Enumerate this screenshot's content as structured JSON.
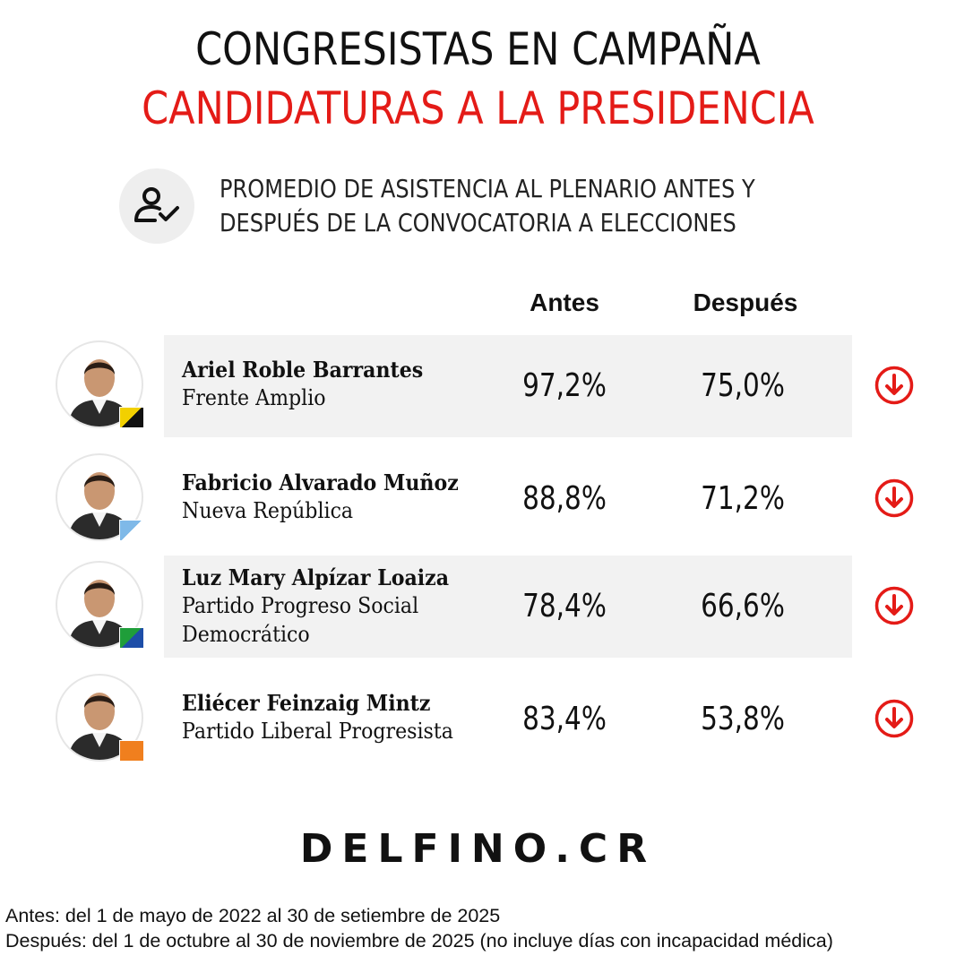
{
  "title": "CONGRESISTAS EN CAMPAÑA",
  "subtitle_red": "CANDIDATURAS A LA PRESIDENCIA",
  "description": {
    "line1": "PROMEDIO DE ASISTENCIA AL PLENARIO ANTES Y",
    "line2": "DESPUÉS DE LA CONVOCATORIA A ELECCIONES",
    "icon": "user-check-icon"
  },
  "chart_data": {
    "type": "table",
    "columns": [
      "Antes",
      "Después"
    ],
    "unit": "%",
    "rows": [
      {
        "name": "Ariel Roble Barrantes",
        "party_lines": [
          "Frente Amplio"
        ],
        "antes": 97.2,
        "antes_label": "97,2%",
        "despues": 75.0,
        "despues_label": "75,0%",
        "trend": "down",
        "party_colors": [
          "#f2d000",
          "#111111"
        ]
      },
      {
        "name": "Fabricio Alvarado Muñoz",
        "party_lines": [
          "Nueva República"
        ],
        "antes": 88.8,
        "antes_label": "88,8%",
        "despues": 71.2,
        "despues_label": "71,2%",
        "trend": "down",
        "party_colors": [
          "#7fb9e8",
          "#ffffff"
        ]
      },
      {
        "name": "Luz Mary Alpízar Loaiza",
        "party_lines": [
          "Partido Progreso Social",
          "Democrático"
        ],
        "antes": 78.4,
        "antes_label": "78,4%",
        "despues": 66.6,
        "despues_label": "66,6%",
        "trend": "down",
        "party_colors": [
          "#1f9e3a",
          "#1d4ea8"
        ]
      },
      {
        "name": "Eliécer Feinzaig Mintz",
        "party_lines": [
          "Partido Liberal Progresista"
        ],
        "antes": 83.4,
        "antes_label": "83,4%",
        "despues": 53.8,
        "despues_label": "53,8%",
        "trend": "down",
        "party_colors": [
          "#f07f1e",
          "#f07f1e"
        ]
      }
    ]
  },
  "colors": {
    "accent_red": "#e41b17",
    "row_shade": "#f2f2f2"
  },
  "logo": "DELFINO.CR",
  "notes": [
    "Antes: del 1 de mayo de 2022 al 30 de setiembre de 2025",
    "Después: del 1 de octubre al 30 de noviembre de 2025 (no incluye días con incapacidad médica)"
  ]
}
